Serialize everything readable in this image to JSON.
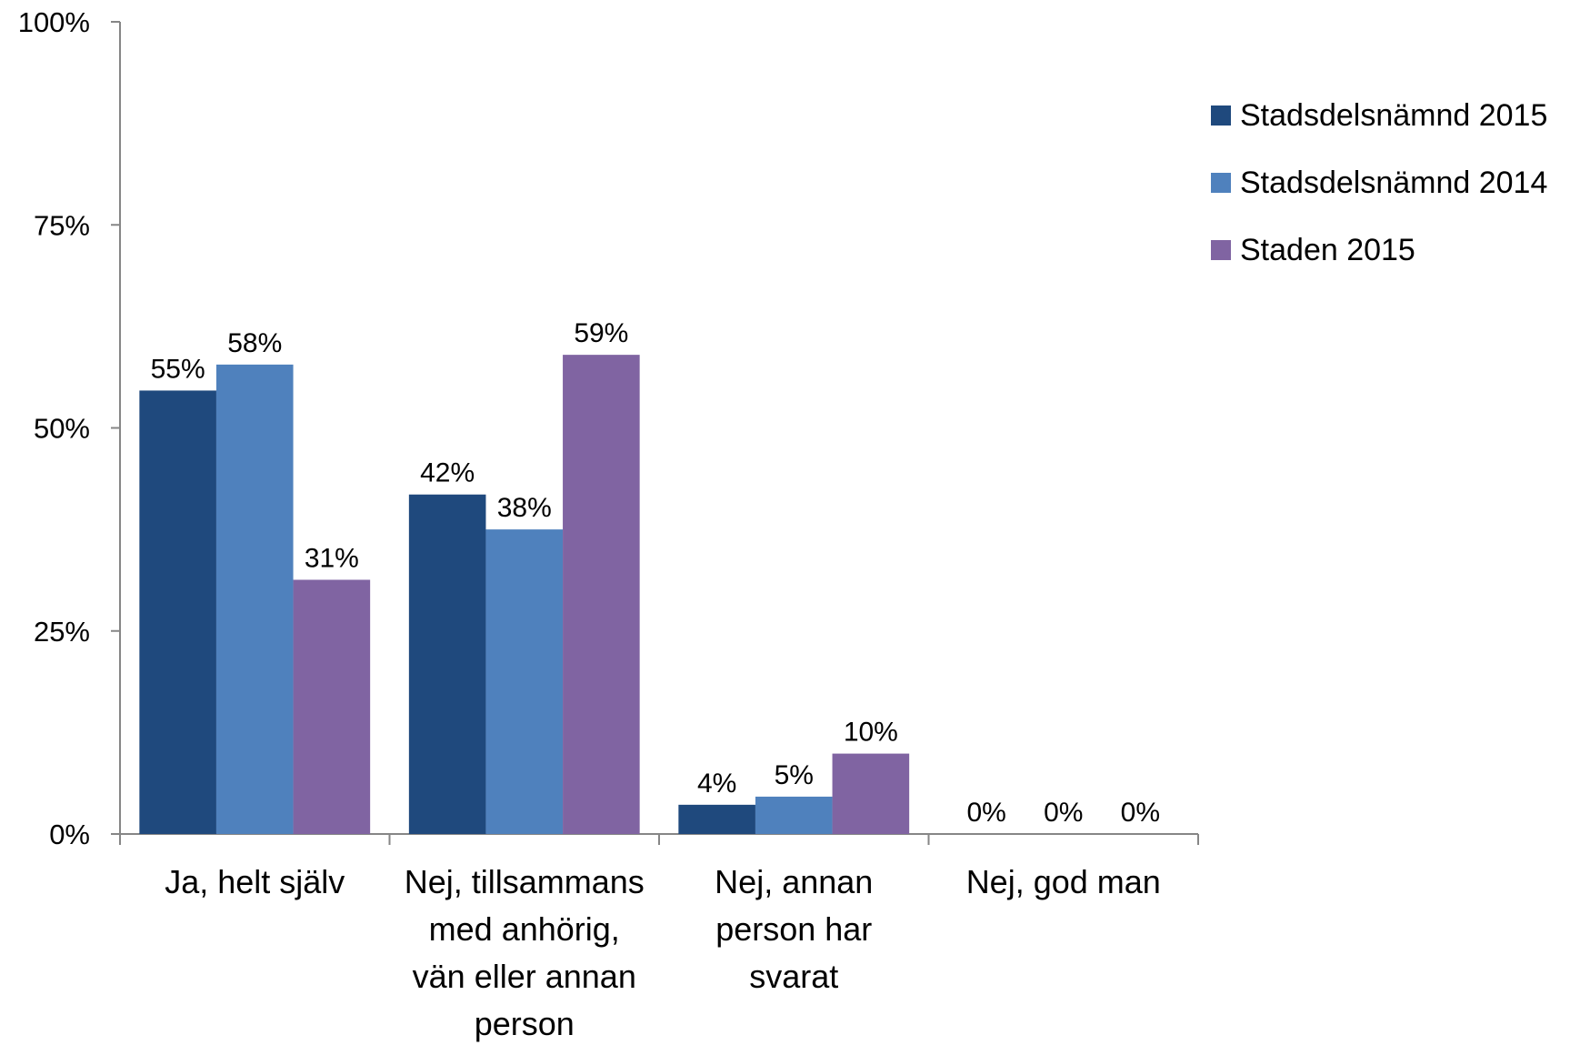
{
  "chart_data": {
    "type": "bar",
    "title": "",
    "xlabel": "",
    "ylabel": "",
    "ylim": [
      0,
      100
    ],
    "y_ticks": [
      "0%",
      "25%",
      "50%",
      "75%",
      "100%"
    ],
    "categories": [
      [
        "Ja, helt själv"
      ],
      [
        "Nej, tillsammans",
        "med anhörig,",
        "vän eller annan",
        "person"
      ],
      [
        "Nej,  annan",
        "person har",
        "svarat"
      ],
      [
        "Nej, god man"
      ]
    ],
    "series": [
      {
        "name": "Stadsdelsnämnd 2015",
        "color": "#1F497D",
        "values": [
          54.6,
          41.8,
          3.6,
          0
        ],
        "labels": [
          "55%",
          "42%",
          "4%",
          "0%"
        ]
      },
      {
        "name": "Stadsdelsnämnd 2014",
        "color": "#4F81BD",
        "values": [
          57.8,
          37.5,
          4.6,
          0
        ],
        "labels": [
          "58%",
          "38%",
          "5%",
          "0%"
        ]
      },
      {
        "name": "Staden 2015",
        "color": "#8064A2",
        "values": [
          31.3,
          59.0,
          9.9,
          0
        ],
        "labels": [
          "31%",
          "59%",
          "10%",
          "0%"
        ]
      }
    ],
    "legend_position": "right",
    "grid": false
  }
}
